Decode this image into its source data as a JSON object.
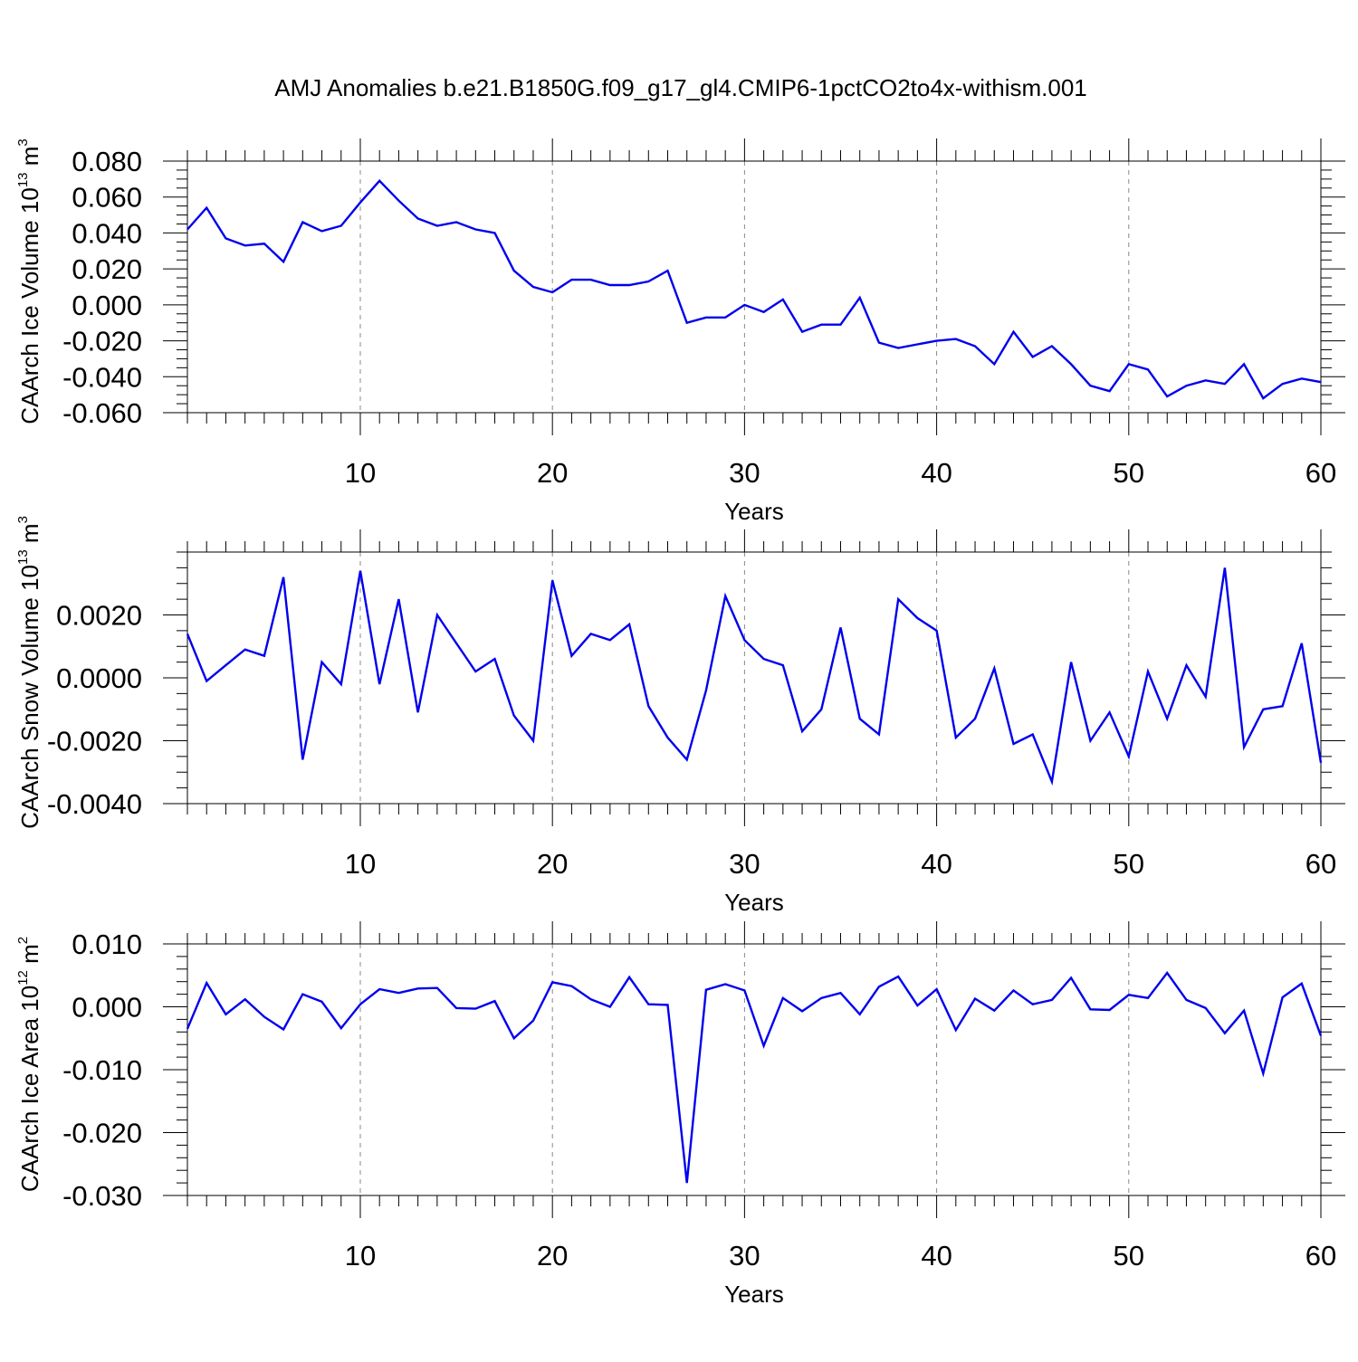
{
  "title": "AMJ Anomalies b.e21.B1850G.f09_g17_gl4.CMIP6-1pctCO2to4x-withism.001",
  "colors": {
    "line": "#0000ee",
    "frame": "#000000",
    "grid": "#888888"
  },
  "chart_data": [
    {
      "type": "line",
      "ylabel": {
        "text": "CAArch Ice Volume 10",
        "exp": "13",
        "unit": " m",
        "unit_exp": "3"
      },
      "xlabel": "Years",
      "xlim": [
        1,
        60
      ],
      "ylim": [
        -0.06,
        0.08
      ],
      "yticks": [
        -0.06,
        -0.04,
        -0.02,
        0.0,
        0.02,
        0.04,
        0.06,
        0.08
      ],
      "yticklabels": [
        "-0.060",
        "-0.040",
        "-0.020",
        "0.000",
        "0.020",
        "0.040",
        "0.060",
        "0.080"
      ],
      "yminor_step": 0.005,
      "xticks": [
        10,
        20,
        30,
        40,
        50,
        60
      ],
      "xticklabels": [
        "10",
        "20",
        "30",
        "40",
        "50",
        "60"
      ],
      "grid": "vertical dashed at major x ticks",
      "x_start": 1,
      "values": [
        0.042,
        0.054,
        0.037,
        0.033,
        0.034,
        0.024,
        0.046,
        0.041,
        0.044,
        0.057,
        0.069,
        0.058,
        0.048,
        0.044,
        0.046,
        0.042,
        0.04,
        0.019,
        0.01,
        0.007,
        0.014,
        0.014,
        0.011,
        0.011,
        0.013,
        0.019,
        -0.01,
        -0.007,
        -0.007,
        0.0,
        -0.004,
        0.003,
        -0.015,
        -0.011,
        -0.011,
        0.004,
        -0.021,
        -0.024,
        -0.022,
        -0.02,
        -0.019,
        -0.023,
        -0.033,
        -0.015,
        -0.029,
        -0.023,
        -0.033,
        -0.045,
        -0.048,
        -0.033,
        -0.036,
        -0.051,
        -0.045,
        -0.042,
        -0.044,
        -0.033,
        -0.052,
        -0.044,
        -0.041,
        -0.043
      ]
    },
    {
      "type": "line",
      "ylabel": {
        "text": "CAArch Snow Volume 10",
        "exp": "13",
        "unit": " m",
        "unit_exp": "3"
      },
      "xlabel": "Years",
      "xlim": [
        1,
        60
      ],
      "ylim": [
        -0.004,
        0.004
      ],
      "yticks": [
        -0.004,
        -0.002,
        0.0,
        0.002
      ],
      "yticklabels": [
        "-0.0040",
        "-0.0020",
        "0.0000",
        "0.0020"
      ],
      "yminor_step": 0.0005,
      "xticks": [
        10,
        20,
        30,
        40,
        50,
        60
      ],
      "xticklabels": [
        "10",
        "20",
        "30",
        "40",
        "50",
        "60"
      ],
      "grid": "vertical dashed at major x ticks",
      "x_start": 1,
      "values": [
        0.0014,
        -0.0001,
        0.0004,
        0.0009,
        0.0007,
        0.0032,
        -0.0026,
        0.0005,
        -0.0002,
        0.0034,
        -0.0002,
        0.0025,
        -0.0011,
        0.002,
        0.0011,
        0.0002,
        0.0006,
        -0.0012,
        -0.002,
        0.0031,
        0.0007,
        0.0014,
        0.0012,
        0.0017,
        -0.0009,
        -0.0019,
        -0.0026,
        -0.0004,
        0.0026,
        0.0012,
        0.0006,
        0.0004,
        -0.0017,
        -0.001,
        0.0016,
        -0.0013,
        -0.0018,
        0.0025,
        0.0019,
        0.0015,
        -0.0019,
        -0.0013,
        0.0003,
        -0.0021,
        -0.0018,
        -0.0033,
        0.0005,
        -0.002,
        -0.0011,
        -0.0025,
        0.0002,
        -0.0013,
        0.0004,
        -0.0006,
        0.0035,
        -0.0022,
        -0.001,
        -0.0009,
        0.0011,
        -0.0027
      ]
    },
    {
      "type": "line",
      "ylabel": {
        "text": "CAArch Ice Area 10",
        "exp": "12",
        "unit": " m",
        "unit_exp": "2"
      },
      "xlabel": "Years",
      "xlim": [
        1,
        60
      ],
      "ylim": [
        -0.03,
        0.01
      ],
      "yticks": [
        -0.03,
        -0.02,
        -0.01,
        0.0,
        0.01
      ],
      "yticklabels": [
        "-0.030",
        "-0.020",
        "-0.010",
        "0.000",
        "0.010"
      ],
      "yminor_step": 0.002,
      "xticks": [
        10,
        20,
        30,
        40,
        50,
        60
      ],
      "xticklabels": [
        "10",
        "20",
        "30",
        "40",
        "50",
        "60"
      ],
      "grid": "vertical dashed at major x ticks",
      "x_start": 1,
      "values": [
        -0.0035,
        0.0038,
        -0.0012,
        0.0012,
        -0.0016,
        -0.0036,
        0.002,
        0.0008,
        -0.0034,
        0.0004,
        0.0028,
        0.0022,
        0.0029,
        0.003,
        -0.0002,
        -0.0003,
        0.0009,
        -0.005,
        -0.0022,
        0.0039,
        0.0033,
        0.0012,
        0.0,
        0.0047,
        0.0004,
        0.0003,
        -0.028,
        0.0027,
        0.0036,
        0.0026,
        -0.0062,
        0.0014,
        -0.0007,
        0.0014,
        0.0022,
        -0.0012,
        0.0032,
        0.0048,
        0.0002,
        0.0028,
        -0.0037,
        0.0013,
        -0.0006,
        0.0026,
        0.0004,
        0.0011,
        0.0046,
        -0.0004,
        -0.0005,
        0.0019,
        0.0014,
        0.0054,
        0.0011,
        -0.0002,
        -0.0042,
        -0.0006,
        -0.0106,
        0.0015,
        0.0037,
        -0.0046
      ]
    }
  ]
}
